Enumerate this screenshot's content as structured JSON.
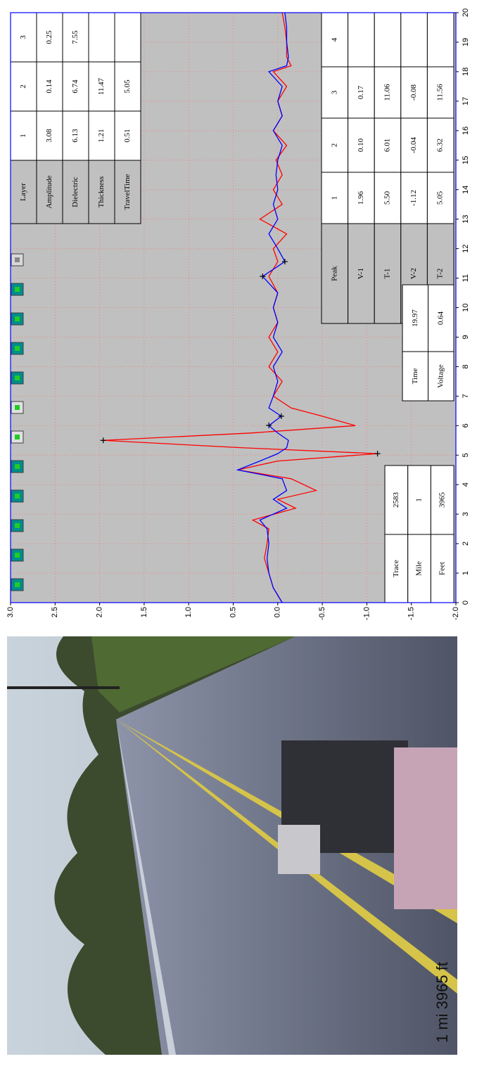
{
  "chart_data": {
    "type": "line",
    "x": [
      0,
      0.5,
      1,
      1.5,
      2,
      2.5,
      2.8,
      3.2,
      3.5,
      3.8,
      4.2,
      4.5,
      4.8,
      5.05,
      5.25,
      5.5,
      5.75,
      6.0,
      6.32,
      6.6,
      7,
      7.5,
      8,
      8.5,
      9,
      9.5,
      10,
      10.5,
      11.06,
      11.56,
      12,
      12.5,
      13,
      13.5,
      14,
      14.5,
      15,
      15.5,
      16,
      16.5,
      17,
      17.5,
      18,
      18.2,
      18.5,
      19,
      19.5,
      20
    ],
    "series": [
      {
        "color": "#ff0000",
        "values": [
          -0.05,
          0.05,
          0.1,
          0.15,
          0.12,
          0.1,
          0.28,
          -0.2,
          0.0,
          -0.43,
          -0.15,
          0.45,
          0.0,
          -1.12,
          0.4,
          1.96,
          0.3,
          -0.87,
          -0.5,
          -0.15,
          0.05,
          -0.05,
          0.1,
          0.0,
          0.1,
          0.0,
          0.05,
          0.0,
          0.1,
          0.0,
          0.05,
          -0.1,
          0.2,
          -0.05,
          0.05,
          -0.05,
          0.02,
          -0.1,
          0.05,
          -0.05,
          0.0,
          -0.1,
          0.05,
          -0.15,
          -0.1,
          -0.1,
          -0.08,
          -0.05
        ]
      },
      {
        "color": "#0000ff",
        "values": [
          -0.05,
          0.05,
          0.1,
          0.12,
          0.1,
          0.12,
          0.2,
          -0.1,
          0.05,
          -0.1,
          -0.05,
          0.45,
          0.2,
          0.0,
          -0.1,
          -0.12,
          0.0,
          0.1,
          -0.04,
          0.1,
          0.05,
          0.0,
          0.05,
          -0.05,
          0.05,
          0.0,
          0.05,
          0.0,
          0.17,
          -0.08,
          0.0,
          0.1,
          0.0,
          0.05,
          0.0,
          0.02,
          0.0,
          -0.05,
          0.05,
          -0.05,
          0.0,
          -0.05,
          0.1,
          -0.1,
          -0.12,
          -0.1,
          -0.1,
          -0.08
        ]
      }
    ],
    "markers": {
      "x": [
        5.5,
        5.05,
        6.01,
        6.32,
        11.06,
        11.56
      ],
      "y": [
        1.96,
        -1.12,
        0.1,
        -0.04,
        0.17,
        -0.08
      ]
    },
    "xlim": [
      0,
      20
    ],
    "xticks": [
      0,
      1,
      2,
      3,
      4,
      5,
      6,
      7,
      8,
      9,
      10,
      11,
      12,
      13,
      14,
      15,
      16,
      17,
      18,
      19,
      20
    ],
    "ylim": [
      -2,
      3
    ],
    "yticks": [
      {
        "value": 3,
        "label": "3.0"
      },
      2.5,
      {
        "value": 2,
        "label": "2.0"
      },
      1.5,
      {
        "value": 1,
        "label": "1.0"
      },
      0.5,
      {
        "value": 0,
        "label": "0.0"
      },
      -0.5,
      {
        "value": -1,
        "label": "-1.0"
      },
      -1.5,
      {
        "value": -2,
        "label": "-2.0"
      }
    ],
    "grid": true
  },
  "photo": {
    "caption": "1 mi 3965 ft"
  },
  "layer_table": {
    "rows": [
      [
        "Layer",
        "1",
        "2",
        "3"
      ],
      [
        "Amplitude",
        "3.08",
        "0.14",
        "0.25"
      ],
      [
        "Dielectric",
        "6.13",
        "6.74",
        "7.55"
      ],
      [
        "Thickness",
        "1.21",
        "11.47",
        null
      ],
      [
        "TravelTime",
        "0.51",
        "5.05",
        null
      ]
    ]
  },
  "peak_table": {
    "rows": [
      [
        "Peak",
        "1",
        "2",
        "3",
        "4"
      ],
      [
        "V-1",
        "1.96",
        "0.10",
        "0.17",
        null
      ],
      [
        "T-1",
        "5.50",
        "6.01",
        "11.06",
        null
      ],
      [
        "V-2",
        "-1.12",
        "-0.04",
        "-0.08",
        null
      ],
      [
        "T-2",
        "5.05",
        "6.32",
        "11.56",
        null
      ]
    ]
  },
  "readout_table": {
    "rows": [
      [
        "Time",
        "19.97"
      ],
      [
        "Voltage",
        "0.64"
      ]
    ]
  },
  "trace_table": {
    "rows": [
      [
        "Trace",
        "2583"
      ],
      [
        "Mile",
        "1"
      ],
      [
        "Feet",
        "3965"
      ]
    ]
  }
}
